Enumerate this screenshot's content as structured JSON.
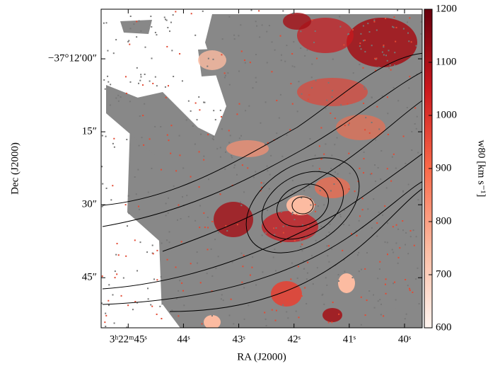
{
  "chart_data": {
    "type": "image",
    "x_label": "RA (J2000)",
    "y_label": "Dec (J2000)",
    "xlim": [
      45.49,
      39.68
    ],
    "xticks": [
      {
        "value": 45,
        "label": "3ʰ22ᵐ45ˢ"
      },
      {
        "value": 44,
        "label": "44ˢ"
      },
      {
        "value": 43,
        "label": "43ˢ"
      },
      {
        "value": 42,
        "label": "42ˢ"
      },
      {
        "value": 41,
        "label": "41ˢ"
      },
      {
        "value": 40,
        "label": "40ˢ"
      }
    ],
    "ylim": [
      -10.2,
      55.3
    ],
    "yticks": [
      {
        "value": 0,
        "label": "−37°12′00″"
      },
      {
        "value": 15,
        "label": "15″"
      },
      {
        "value": 30,
        "label": "30″"
      },
      {
        "value": 45,
        "label": "45″"
      }
    ],
    "colorbar": {
      "label": "w80 [km s⁻¹]",
      "clim": [
        600,
        1200
      ],
      "ticks": [
        600,
        700,
        800,
        900,
        1000,
        1100,
        1200
      ],
      "colormap": [
        "#fff5f0",
        "#fcbba1",
        "#fb6a4a",
        "#cb181d",
        "#67000d"
      ]
    }
  }
}
